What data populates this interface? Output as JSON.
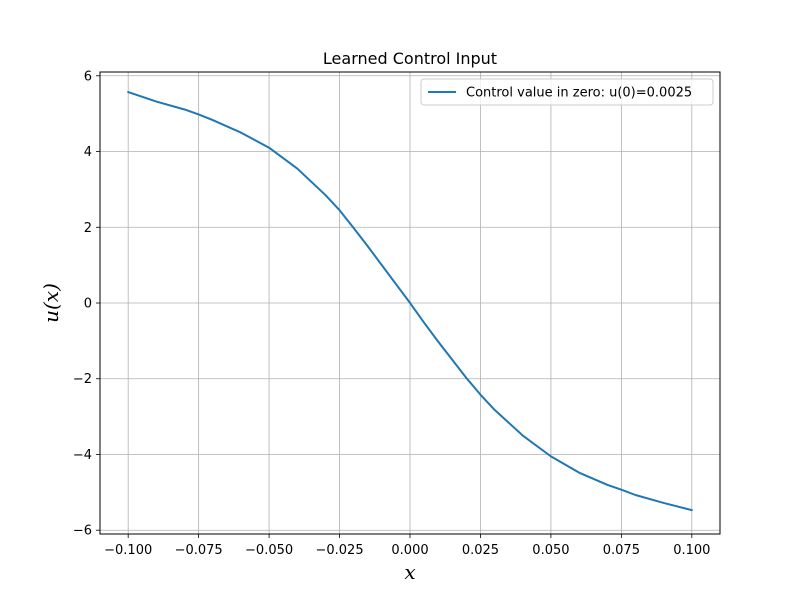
{
  "chart_data": {
    "type": "line",
    "title": "Learned Control Input",
    "xlabel": "x",
    "ylabel": "u(x)",
    "xlim": [
      -0.11,
      0.11
    ],
    "ylim": [
      -6.1,
      6.1
    ],
    "xticks": [
      -0.1,
      -0.075,
      -0.05,
      -0.025,
      0.0,
      0.025,
      0.05,
      0.075,
      0.1
    ],
    "xtick_labels": [
      "−0.100",
      "−0.075",
      "−0.050",
      "−0.025",
      "0.000",
      "0.025",
      "0.050",
      "0.075",
      "0.100"
    ],
    "yticks": [
      -6,
      -4,
      -2,
      0,
      2,
      4,
      6
    ],
    "ytick_labels": [
      "−6",
      "−4",
      "−2",
      "0",
      "2",
      "4",
      "6"
    ],
    "grid": true,
    "legend_position": "top-right",
    "series": [
      {
        "name": "Control value in zero: u(0)=0.0025",
        "color": "#1f77b4",
        "x": [
          -0.1,
          -0.09,
          -0.08,
          -0.075,
          -0.07,
          -0.06,
          -0.05,
          -0.04,
          -0.03,
          -0.025,
          -0.02,
          -0.015,
          -0.01,
          -0.005,
          0.0,
          0.005,
          0.01,
          0.015,
          0.02,
          0.025,
          0.03,
          0.04,
          0.05,
          0.06,
          0.07,
          0.075,
          0.08,
          0.09,
          0.1
        ],
        "y": [
          5.57,
          5.32,
          5.11,
          4.98,
          4.83,
          4.5,
          4.1,
          3.55,
          2.85,
          2.45,
          1.98,
          1.5,
          1.0,
          0.5,
          0.0025,
          -0.52,
          -1.02,
          -1.5,
          -1.98,
          -2.42,
          -2.82,
          -3.5,
          -4.05,
          -4.48,
          -4.8,
          -4.93,
          -5.07,
          -5.28,
          -5.47
        ]
      }
    ]
  }
}
